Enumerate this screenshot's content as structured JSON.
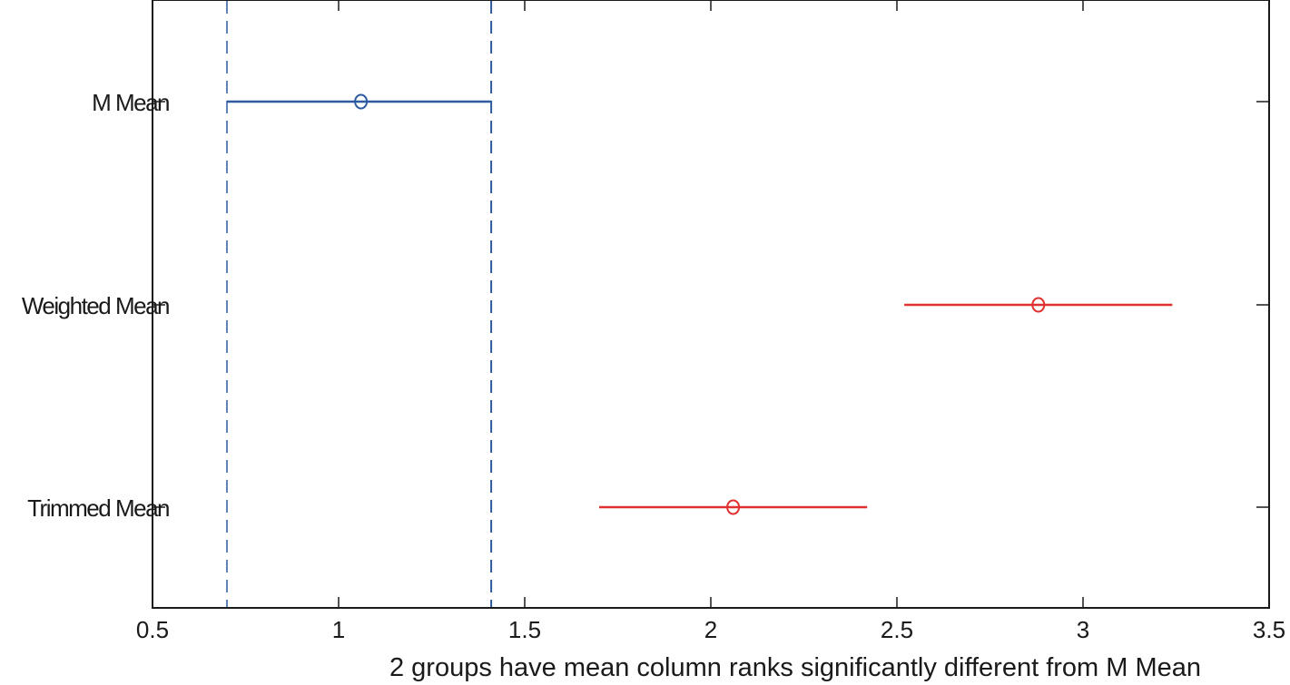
{
  "chart_data": {
    "type": "interval",
    "xlabel": "2 groups have mean column ranks significantly different from M Mean",
    "ylabel": "",
    "xlim": [
      0.5,
      3.5
    ],
    "xticks": [
      0.5,
      1,
      1.5,
      2,
      2.5,
      3,
      3.5
    ],
    "xtick_labels": [
      "0.5",
      "1",
      "1.5",
      "2",
      "2.5",
      "3",
      "3.5"
    ],
    "groups": [
      {
        "label": "M Mean",
        "center": 1.06,
        "lower": 0.7,
        "upper": 1.41,
        "color": "#2e5aa0",
        "selected": true
      },
      {
        "label": "Weighted Mean",
        "center": 2.88,
        "lower": 2.52,
        "upper": 3.24,
        "color": "#e03030",
        "selected": false
      },
      {
        "label": "Trimmed Mean",
        "center": 2.06,
        "lower": 1.7,
        "upper": 2.42,
        "color": "#e03030",
        "selected": false
      }
    ],
    "reference_lines": [
      0.7,
      1.41
    ],
    "reference_line_color": "#2e5aa0",
    "axis_color": "#1a1a1a",
    "grid": false
  }
}
